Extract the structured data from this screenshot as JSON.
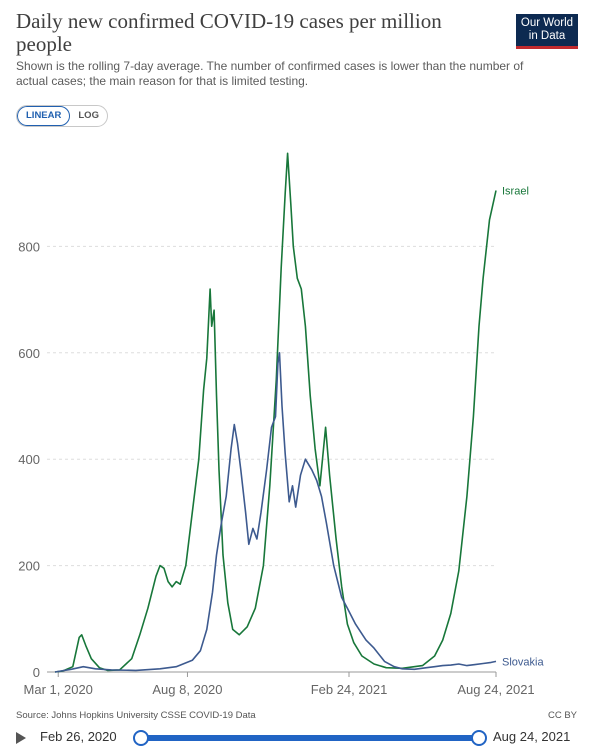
{
  "header": {
    "title": "Daily new confirmed COVID-19 cases per million people",
    "subtitle": "Shown is the rolling 7-day average. The number of confirmed cases is lower than the number of actual cases; the main reason for that is limited testing.",
    "logo_line1": "Our World",
    "logo_line2": "in Data"
  },
  "scale_toggle": {
    "linear": "LINEAR",
    "log": "LOG",
    "selected": "LINEAR"
  },
  "footer": {
    "source": "Source: Johns Hopkins University CSSE COVID-19 Data",
    "license": "CC BY"
  },
  "timeline": {
    "start": "Feb 26, 2020",
    "end": "Aug 24, 2021"
  },
  "colors": {
    "israel": "#18773a",
    "slovakia": "#3d5a8f",
    "grid": "#dddddd"
  },
  "chart_data": {
    "type": "line",
    "title": "Daily new confirmed COVID-19 cases per million people",
    "x_ticks": [
      "Mar 1, 2020",
      "Aug 8, 2020",
      "Feb 24, 2021",
      "Aug 24, 2021"
    ],
    "x_tick_days": [
      4,
      164,
      364,
      546
    ],
    "x_range_days": [
      0,
      546
    ],
    "x_start_date": "Feb 26, 2020",
    "y_ticks": [
      0,
      200,
      400,
      600,
      800
    ],
    "ylim": [
      0,
      1000
    ],
    "grid": "horizontal dashed",
    "series": [
      {
        "name": "Israel",
        "color": "#18773a",
        "points": [
          [
            0,
            0
          ],
          [
            10,
            2
          ],
          [
            22,
            10
          ],
          [
            30,
            65
          ],
          [
            33,
            70
          ],
          [
            38,
            50
          ],
          [
            45,
            25
          ],
          [
            55,
            8
          ],
          [
            65,
            3
          ],
          [
            80,
            4
          ],
          [
            95,
            25
          ],
          [
            105,
            70
          ],
          [
            115,
            120
          ],
          [
            125,
            180
          ],
          [
            130,
            200
          ],
          [
            135,
            195
          ],
          [
            140,
            170
          ],
          [
            145,
            160
          ],
          [
            150,
            170
          ],
          [
            155,
            165
          ],
          [
            162,
            200
          ],
          [
            170,
            300
          ],
          [
            178,
            400
          ],
          [
            184,
            530
          ],
          [
            188,
            590
          ],
          [
            192,
            720
          ],
          [
            194,
            650
          ],
          [
            197,
            680
          ],
          [
            200,
            520
          ],
          [
            203,
            380
          ],
          [
            208,
            220
          ],
          [
            214,
            130
          ],
          [
            220,
            80
          ],
          [
            228,
            70
          ],
          [
            238,
            85
          ],
          [
            248,
            120
          ],
          [
            258,
            200
          ],
          [
            266,
            350
          ],
          [
            274,
            550
          ],
          [
            280,
            760
          ],
          [
            285,
            900
          ],
          [
            288,
            975
          ],
          [
            292,
            880
          ],
          [
            295,
            800
          ],
          [
            300,
            740
          ],
          [
            305,
            720
          ],
          [
            310,
            650
          ],
          [
            316,
            520
          ],
          [
            322,
            420
          ],
          [
            328,
            350
          ],
          [
            335,
            460
          ],
          [
            340,
            370
          ],
          [
            348,
            250
          ],
          [
            355,
            160
          ],
          [
            362,
            90
          ],
          [
            370,
            55
          ],
          [
            380,
            30
          ],
          [
            395,
            15
          ],
          [
            410,
            8
          ],
          [
            430,
            7
          ],
          [
            455,
            12
          ],
          [
            470,
            30
          ],
          [
            480,
            60
          ],
          [
            490,
            110
          ],
          [
            500,
            190
          ],
          [
            510,
            330
          ],
          [
            518,
            480
          ],
          [
            525,
            650
          ],
          [
            530,
            740
          ],
          [
            538,
            850
          ],
          [
            546,
            905
          ]
        ]
      },
      {
        "name": "Slovakia",
        "color": "#3d5a8f",
        "points": [
          [
            0,
            0
          ],
          [
            20,
            5
          ],
          [
            35,
            10
          ],
          [
            50,
            6
          ],
          [
            70,
            4
          ],
          [
            100,
            3
          ],
          [
            130,
            6
          ],
          [
            150,
            10
          ],
          [
            170,
            22
          ],
          [
            180,
            40
          ],
          [
            188,
            80
          ],
          [
            195,
            150
          ],
          [
            200,
            220
          ],
          [
            206,
            280
          ],
          [
            212,
            330
          ],
          [
            218,
            420
          ],
          [
            222,
            465
          ],
          [
            226,
            430
          ],
          [
            230,
            380
          ],
          [
            236,
            300
          ],
          [
            240,
            240
          ],
          [
            245,
            270
          ],
          [
            250,
            250
          ],
          [
            255,
            300
          ],
          [
            262,
            380
          ],
          [
            268,
            460
          ],
          [
            273,
            480
          ],
          [
            276,
            580
          ],
          [
            278,
            600
          ],
          [
            281,
            500
          ],
          [
            285,
            410
          ],
          [
            290,
            320
          ],
          [
            294,
            350
          ],
          [
            298,
            310
          ],
          [
            304,
            370
          ],
          [
            310,
            400
          ],
          [
            318,
            380
          ],
          [
            324,
            360
          ],
          [
            330,
            330
          ],
          [
            336,
            280
          ],
          [
            345,
            200
          ],
          [
            355,
            140
          ],
          [
            362,
            120
          ],
          [
            372,
            90
          ],
          [
            385,
            60
          ],
          [
            395,
            45
          ],
          [
            408,
            20
          ],
          [
            420,
            10
          ],
          [
            430,
            6
          ],
          [
            445,
            5
          ],
          [
            460,
            8
          ],
          [
            470,
            10
          ],
          [
            480,
            12
          ],
          [
            490,
            13
          ],
          [
            500,
            15
          ],
          [
            510,
            12
          ],
          [
            520,
            14
          ],
          [
            530,
            16
          ],
          [
            540,
            18
          ],
          [
            546,
            20
          ]
        ]
      }
    ]
  }
}
